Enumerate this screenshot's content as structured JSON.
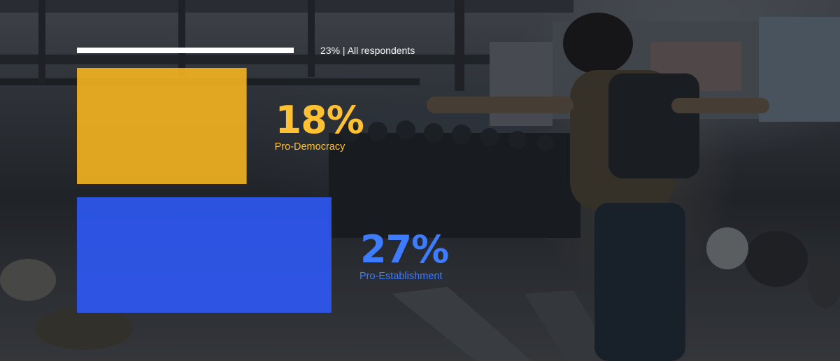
{
  "total": {
    "percent_label": "23%",
    "separator": "|",
    "group_label": "All respondents",
    "value": 23
  },
  "chart_data": {
    "type": "bar",
    "title": "",
    "xlabel": "",
    "ylabel": "",
    "ylim": [
      0,
      30
    ],
    "categories": [
      "Pro-Democracy",
      "Pro-Establishment"
    ],
    "values": [
      18,
      27
    ],
    "value_labels": [
      "18%",
      "27%"
    ],
    "colors": [
      "#FFBA1F",
      "#2D5BFF"
    ],
    "label_colors": [
      "#FFC132",
      "#3D7BFF"
    ],
    "reference": {
      "name": "All respondents",
      "value": 23,
      "color": "#FFFFFF",
      "track_color": "#8A8D92"
    },
    "orientation": "horizontal",
    "grid": false
  }
}
